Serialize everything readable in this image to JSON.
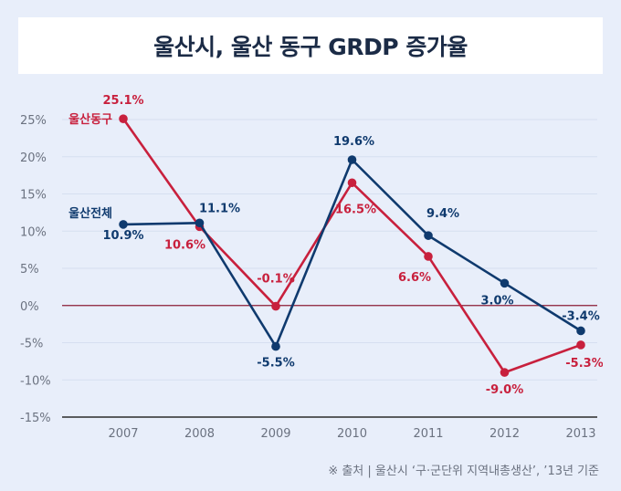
{
  "title": "울산시, 울산 동구 GRDP 증가율",
  "source": "※ 출처 | 울산시 ‘구·군단위 지역내총생산’, ’13년 기준",
  "chart_data": {
    "type": "line",
    "title": "울산시, 울산 동구 GRDP 증가율",
    "categories": [
      "2007",
      "2008",
      "2009",
      "2010",
      "2011",
      "2012",
      "2013"
    ],
    "ylim": [
      -15,
      25
    ],
    "yticks": [
      25,
      20,
      15,
      10,
      5,
      0,
      -5,
      -10,
      -15
    ],
    "ytick_labels": [
      "25%",
      "20%",
      "15%",
      "10%",
      "5%",
      "0%",
      "-5%",
      "-10%",
      "-15%"
    ],
    "grid": true,
    "series": [
      {
        "name": "울산동구",
        "color": "#c8203d",
        "values": [
          25.1,
          10.6,
          -0.1,
          16.5,
          6.6,
          -9.0,
          -5.3
        ],
        "labels": [
          "25.1%",
          "10.6%",
          "-0.1%",
          "16.5%",
          "6.6%",
          "-9.0%",
          "-5.3%"
        ]
      },
      {
        "name": "울산전체",
        "color": "#0f3a6e",
        "values": [
          10.9,
          11.1,
          -5.5,
          19.6,
          9.4,
          3.0,
          -3.4
        ],
        "labels": [
          "10.9%",
          "11.1%",
          "-5.5%",
          "19.6%",
          "9.4%",
          "3.0%",
          "-3.4%"
        ]
      }
    ]
  }
}
